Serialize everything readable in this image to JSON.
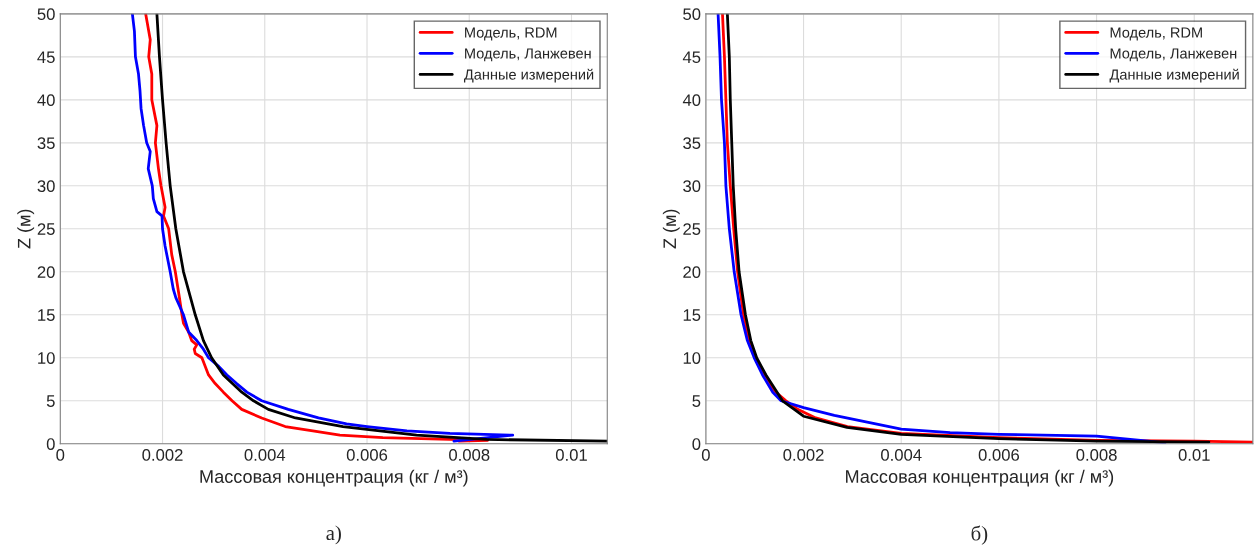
{
  "chart_data": [
    {
      "type": "line",
      "xlabel": "Массовая концентрация (кг / м³)",
      "ylabel": "Z (м)",
      "annotations": [
        "а)"
      ],
      "xlim": [
        0,
        0.0107
      ],
      "ylim": [
        0,
        50
      ],
      "xticks": [
        0,
        0.002,
        0.004,
        0.006,
        0.008,
        0.01
      ],
      "yticks": [
        0,
        5,
        10,
        15,
        20,
        25,
        30,
        35,
        40,
        45,
        50
      ],
      "grid": true,
      "legend": "top right",
      "marker": "none",
      "line_style": "solid",
      "series": [
        {
          "name": "Модель, RDM",
          "color": "#ff0000",
          "x": [
            0.00167,
            0.00176,
            0.00173,
            0.00179,
            0.00179,
            0.00189,
            0.00186,
            0.00192,
            0.00197,
            0.00205,
            0.00202,
            0.00212,
            0.00218,
            0.00225,
            0.00233,
            0.00238,
            0.00241,
            0.00251,
            0.00257,
            0.00267,
            0.00262,
            0.00264,
            0.00277,
            0.0029,
            0.00303,
            0.00319,
            0.00336,
            0.00355,
            0.00394,
            0.0044,
            0.00494,
            0.00547,
            0.00631,
            0.00836,
            0.0078
          ],
          "values": [
            50,
            47,
            45,
            43,
            40,
            37,
            35,
            32,
            30,
            27.5,
            26.5,
            25,
            22,
            20,
            17,
            15,
            14,
            13,
            12,
            11.5,
            11,
            10.5,
            10,
            8,
            7,
            6,
            5,
            4,
            3,
            2,
            1.5,
            1,
            0.7,
            0.4,
            0.3
          ]
        },
        {
          "name": "Модель, Ланжевен",
          "color": "#0000ff",
          "x": [
            0.00141,
            0.00145,
            0.00147,
            0.00153,
            0.00156,
            0.00158,
            0.00163,
            0.00169,
            0.00176,
            0.00172,
            0.0018,
            0.00182,
            0.00189,
            0.00199,
            0.002,
            0.00205,
            0.00215,
            0.00221,
            0.00226,
            0.00241,
            0.00251,
            0.00267,
            0.0028,
            0.0029,
            0.0031,
            0.00326,
            0.00345,
            0.00365,
            0.00394,
            0.00446,
            0.00505,
            0.0056,
            0.006,
            0.00678,
            0.00762,
            0.00885,
            0.0077
          ],
          "values": [
            50,
            48,
            45,
            43,
            41,
            39,
            37,
            35,
            34,
            32,
            30,
            28.5,
            27,
            26.5,
            25,
            23,
            20,
            18,
            17,
            15,
            13,
            12,
            11,
            10,
            9,
            8,
            7,
            6,
            5,
            4,
            3,
            2.3,
            2,
            1.5,
            1.2,
            1,
            0.3
          ]
        },
        {
          "name": "Данные измерений",
          "color": "#000000",
          "x": [
            0.00189,
            0.00194,
            0.002,
            0.00207,
            0.00215,
            0.00226,
            0.00241,
            0.00264,
            0.0028,
            0.00296,
            0.00319,
            0.00355,
            0.00378,
            0.00407,
            0.0046,
            0.00553,
            0.00697,
            0.00834,
            0.0107
          ],
          "values": [
            50,
            45,
            40,
            35,
            30,
            25,
            20,
            15,
            12,
            10,
            8,
            6,
            5,
            4,
            3,
            2,
            1,
            0.5,
            0.3
          ]
        }
      ]
    },
    {
      "type": "line",
      "xlabel": "Массовая концентрация (кг / м³)",
      "ylabel": "Z (м)",
      "annotations": [
        "б)"
      ],
      "xlim": [
        0,
        0.0112
      ],
      "ylim": [
        0,
        50
      ],
      "xticks": [
        0,
        0.002,
        0.004,
        0.006,
        0.008,
        0.01
      ],
      "yticks": [
        0,
        5,
        10,
        15,
        20,
        25,
        30,
        35,
        40,
        45,
        50
      ],
      "grid": true,
      "legend": "top right",
      "marker": "none",
      "line_style": "solid",
      "series": [
        {
          "name": "Модель, RDM",
          "color": "#ff0000",
          "x": [
            0.00034,
            0.00038,
            0.00041,
            0.00044,
            0.0005,
            0.00057,
            0.00065,
            0.00077,
            0.00089,
            0.00102,
            0.00119,
            0.00143,
            0.00164,
            0.00188,
            0.00225,
            0.0029,
            0.004,
            0.006,
            0.008,
            0.01,
            0.0112
          ],
          "values": [
            50,
            45,
            40,
            35,
            30,
            25,
            20,
            15,
            12,
            10,
            8,
            6,
            5,
            4,
            3,
            2,
            1.2,
            0.7,
            0.4,
            0.3,
            0.2
          ]
        },
        {
          "name": "Модель, Ланжевен",
          "color": "#0000ff",
          "x": [
            0.00025,
            0.00029,
            0.00032,
            0.00038,
            0.00041,
            0.00048,
            0.00058,
            0.00072,
            0.00085,
            0.00099,
            0.00116,
            0.00137,
            0.00154,
            0.002,
            0.00263,
            0.004,
            0.005,
            0.006,
            0.008,
            0.00906,
            0.0094
          ],
          "values": [
            50,
            45,
            40,
            35,
            30,
            25,
            20,
            15,
            12,
            10,
            8,
            6,
            5,
            4.2,
            3.3,
            1.7,
            1.3,
            1.1,
            0.9,
            0.3,
            0.1
          ]
        },
        {
          "name": "Данные измерений",
          "color": "#000000",
          "x": [
            0.00044,
            0.00048,
            0.0005,
            0.00053,
            0.00056,
            0.00061,
            0.00068,
            0.00081,
            0.00092,
            0.00104,
            0.00123,
            0.00157,
            0.00181,
            0.002,
            0.00289,
            0.004,
            0.006,
            0.008,
            0.0103
          ],
          "values": [
            50,
            45,
            40,
            35,
            30,
            25,
            20,
            15,
            12,
            10,
            8,
            5,
            4,
            3.2,
            1.9,
            1.1,
            0.6,
            0.3,
            0.2
          ]
        }
      ]
    }
  ]
}
